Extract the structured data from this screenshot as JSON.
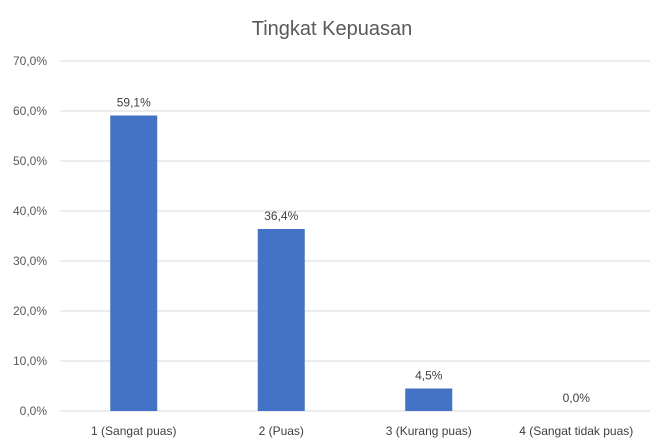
{
  "chart_data": {
    "type": "bar",
    "title": "Tingkat Kepuasan",
    "xlabel": "",
    "ylabel": "",
    "categories": [
      "1 (Sangat puas)",
      "2 (Puas)",
      "3 (Kurang puas)",
      "4 (Sangat tidak puas)"
    ],
    "values": [
      59.1,
      36.4,
      4.5,
      0.0
    ],
    "value_labels": [
      "59,1%",
      "36,4%",
      "4,5%",
      "0,0%"
    ],
    "ylim": [
      0,
      70
    ],
    "yticks": [
      0,
      10,
      20,
      30,
      40,
      50,
      60,
      70
    ],
    "ytick_labels": [
      "0,0%",
      "10,0%",
      "20,0%",
      "30,0%",
      "40,0%",
      "50,0%",
      "60,0%",
      "70,0%"
    ],
    "grid": true,
    "legend": "none",
    "bar_color": "#4472C4",
    "grid_color": "#D9D9D9"
  }
}
